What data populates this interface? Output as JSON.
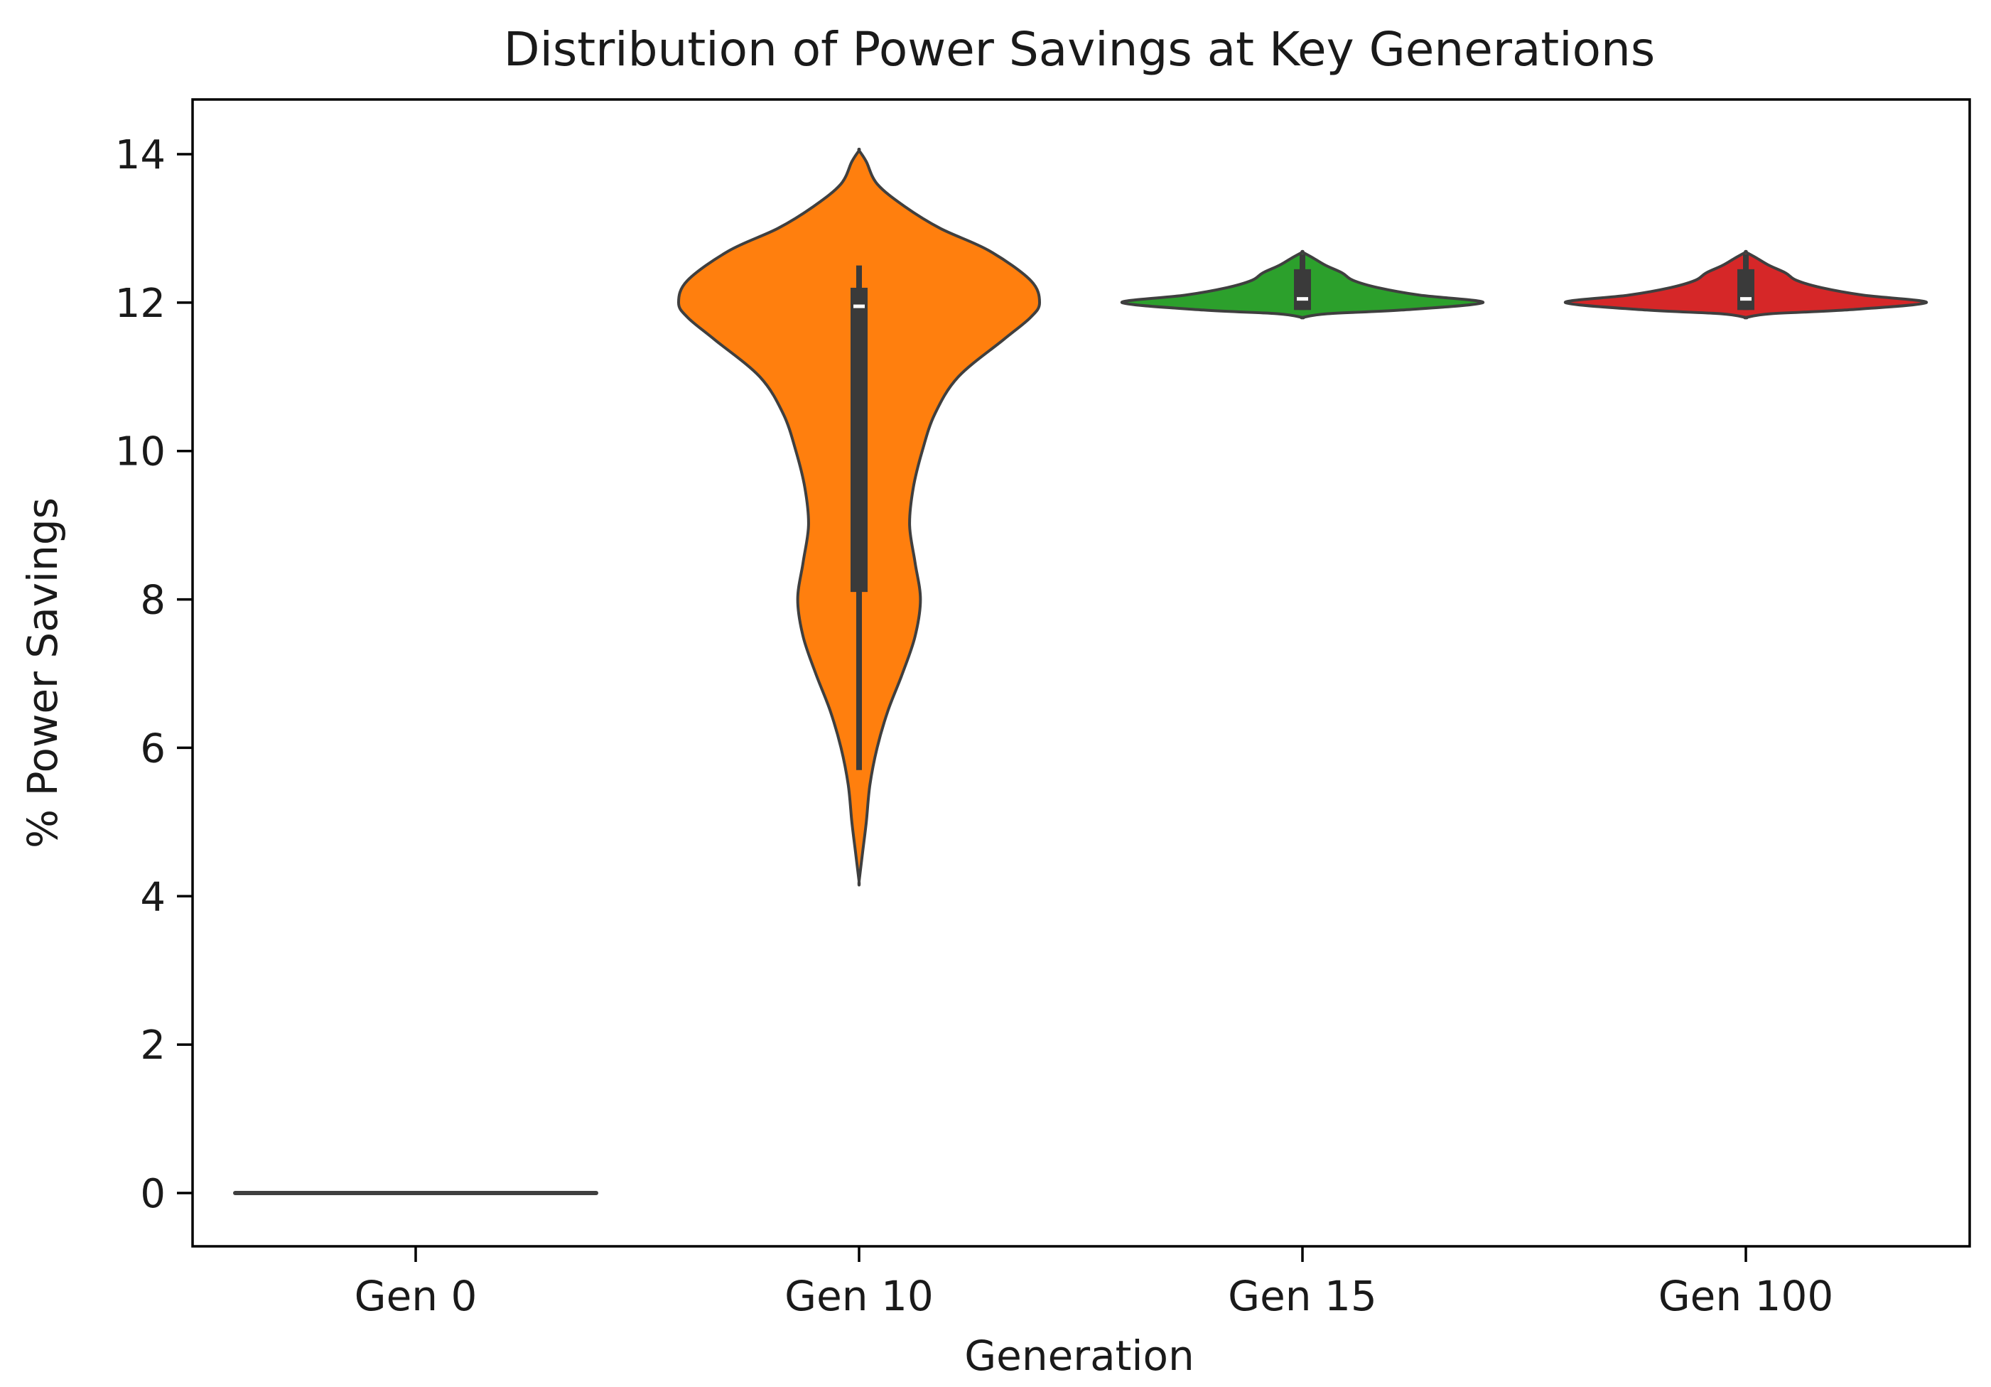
{
  "chart_data": {
    "type": "violin",
    "title": "Distribution of Power Savings at Key Generations",
    "xlabel": "Generation",
    "ylabel": "% Power Savings",
    "ylim": [
      -0.7,
      14.7
    ],
    "yticks": [
      0,
      2,
      4,
      6,
      8,
      10,
      12,
      14
    ],
    "grid": false,
    "legend": "none",
    "categories": [
      "Gen 0",
      "Gen 10",
      "Gen 15",
      "Gen 100"
    ],
    "series": [
      {
        "category": "Gen 0",
        "color": "#1f77b4",
        "min": 0,
        "q1": 0,
        "median": 0,
        "q3": 0,
        "max": 0,
        "degenerate": true,
        "profile": []
      },
      {
        "category": "Gen 10",
        "color": "#ff7f0e",
        "min": 5.7,
        "q1": 8.1,
        "median": 11.95,
        "q3": 12.2,
        "max": 12.5,
        "profile": [
          [
            4.2,
            0.0
          ],
          [
            4.6,
            0.02
          ],
          [
            5.0,
            0.04
          ],
          [
            5.5,
            0.06
          ],
          [
            6.0,
            0.1
          ],
          [
            6.5,
            0.16
          ],
          [
            7.0,
            0.24
          ],
          [
            7.5,
            0.31
          ],
          [
            8.0,
            0.34
          ],
          [
            8.5,
            0.31
          ],
          [
            9.0,
            0.28
          ],
          [
            9.5,
            0.3
          ],
          [
            10.0,
            0.35
          ],
          [
            10.5,
            0.42
          ],
          [
            11.0,
            0.55
          ],
          [
            11.5,
            0.8
          ],
          [
            11.8,
            0.95
          ],
          [
            12.0,
            1.0
          ],
          [
            12.3,
            0.95
          ],
          [
            12.7,
            0.72
          ],
          [
            13.0,
            0.45
          ],
          [
            13.3,
            0.25
          ],
          [
            13.6,
            0.1
          ],
          [
            13.9,
            0.04
          ],
          [
            14.05,
            0.0
          ]
        ]
      },
      {
        "category": "Gen 15",
        "color": "#2ca02c",
        "min": 11.9,
        "q1": 11.9,
        "median": 12.05,
        "q3": 12.45,
        "max": 12.65,
        "profile": [
          [
            11.8,
            0.0
          ],
          [
            11.85,
            0.14
          ],
          [
            11.9,
            0.55
          ],
          [
            12.0,
            1.0
          ],
          [
            12.1,
            0.65
          ],
          [
            12.2,
            0.42
          ],
          [
            12.3,
            0.28
          ],
          [
            12.4,
            0.22
          ],
          [
            12.5,
            0.13
          ],
          [
            12.6,
            0.06
          ],
          [
            12.68,
            0.0
          ]
        ]
      },
      {
        "category": "Gen 100",
        "color": "#d62728",
        "min": 11.9,
        "q1": 11.9,
        "median": 12.05,
        "q3": 12.45,
        "max": 12.65,
        "profile": [
          [
            11.8,
            0.0
          ],
          [
            11.85,
            0.14
          ],
          [
            11.9,
            0.55
          ],
          [
            12.0,
            1.0
          ],
          [
            12.1,
            0.65
          ],
          [
            12.2,
            0.42
          ],
          [
            12.3,
            0.28
          ],
          [
            12.4,
            0.22
          ],
          [
            12.5,
            0.13
          ],
          [
            12.6,
            0.06
          ],
          [
            12.68,
            0.0
          ]
        ]
      }
    ]
  }
}
